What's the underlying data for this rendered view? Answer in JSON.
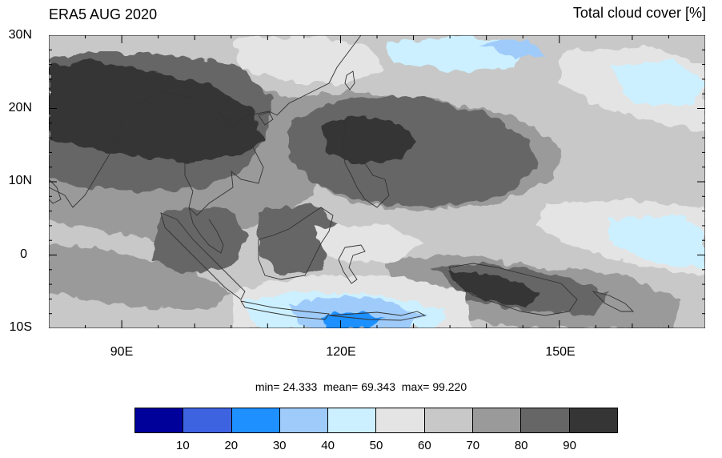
{
  "title_left": "ERA5 AUG 2020",
  "title_right": "Total cloud cover [%]",
  "lat_labels": [
    "30N",
    "20N",
    "10N",
    "0",
    "10S"
  ],
  "lon_labels": [
    "90E",
    "120E",
    "150E"
  ],
  "stats": {
    "min_label": "min=",
    "min_value": "24.333",
    "mean_label": "mean=",
    "mean_value": "69.343",
    "max_label": "max=",
    "max_value": "99.220"
  },
  "colorbar": {
    "colors": [
      "#00009a",
      "#3d63e0",
      "#1e90ff",
      "#9fcbfa",
      "#ccf0ff",
      "#e4e4e4",
      "#c8c8c8",
      "#9a9a9a",
      "#666666",
      "#353535"
    ],
    "labels": [
      "10",
      "20",
      "30",
      "40",
      "50",
      "60",
      "70",
      "80",
      "90"
    ]
  }
}
